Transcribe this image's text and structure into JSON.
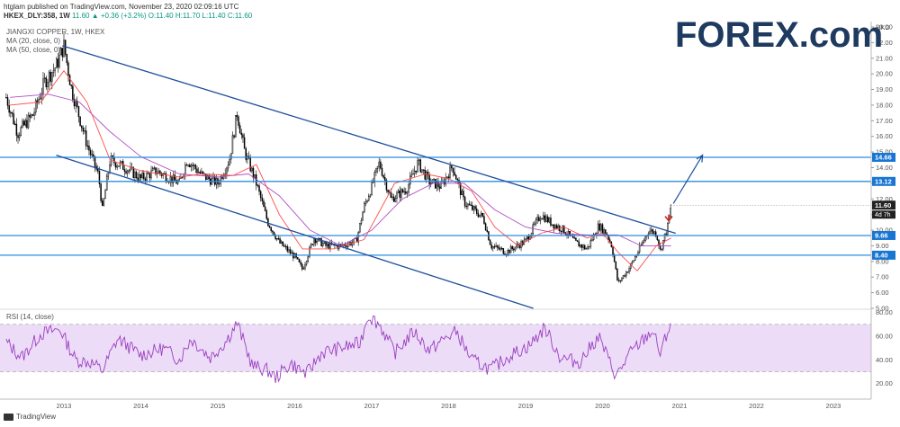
{
  "header": {
    "author": "htglam",
    "published_text": "published on TradingView.com, November 23, 2020 02:09:16 UTC",
    "symbol": "HKEX_DLY:358, 1W",
    "ohlc": "11.60 ▲ +0.36 (+3.2%) O:11.40 H:11.70 L:11.40 C:11.60"
  },
  "legend": {
    "title": "JIANGXI COPPER, 1W, HKEX",
    "ma20": "MA (20, close, 0)",
    "ma50": "MA (50, close, 0)"
  },
  "rsi_legend": "RSI (14, close)",
  "logo": {
    "text": "FOREX.com"
  },
  "currency_label": "HKD",
  "footer": {
    "brand": "TradingView"
  },
  "colors": {
    "candle": "#000000",
    "ma20": "#ff4d4d",
    "ma50": "#b04fc4",
    "trendline": "#1c4f9c",
    "level_line": "#2c8ce0",
    "price_tag": "#1876d2",
    "rsi_line": "#9b3fc0",
    "rsi_band": "#ecdcf7",
    "arrow_marker": "#c62828"
  },
  "chart_data": [
    {
      "type": "candlestick",
      "title": "JIANGXI COPPER, 1W, HKEX",
      "x_ticks": [
        "2013",
        "2014",
        "2015",
        "2016",
        "2017",
        "2018",
        "2019",
        "2020",
        "2021",
        "2022",
        "2023"
      ],
      "y_ticks": [
        5.0,
        6.0,
        7.0,
        8.0,
        9.0,
        10.0,
        11.0,
        12.0,
        13.0,
        14.0,
        15.0,
        16.0,
        17.0,
        18.0,
        19.0,
        20.0,
        21.0,
        22.0,
        23.0
      ],
      "y_tick_labels": [
        "5.00",
        "6.00",
        "7.00",
        "8.00",
        "9.00",
        "10.00",
        "11.00",
        "12.00",
        "13.00",
        "14.00",
        "15.00",
        "16.00",
        "17.00",
        "18.00",
        "19.00",
        "20.00",
        "21.00",
        "22.00",
        "23.00"
      ],
      "ylim": [
        5.0,
        23.0
      ],
      "price_path": [
        [
          2012.25,
          18.5
        ],
        [
          2012.4,
          16.2
        ],
        [
          2012.6,
          17.4
        ],
        [
          2012.75,
          19.5
        ],
        [
          2012.9,
          20.5
        ],
        [
          2013.0,
          21.8
        ],
        [
          2013.1,
          19.0
        ],
        [
          2013.3,
          15.5
        ],
        [
          2013.45,
          13.5
        ],
        [
          2013.5,
          11.3
        ],
        [
          2013.6,
          14.5
        ],
        [
          2013.8,
          14.0
        ],
        [
          2014.0,
          13.3
        ],
        [
          2014.2,
          13.8
        ],
        [
          2014.5,
          13.0
        ],
        [
          2014.6,
          14.5
        ],
        [
          2014.8,
          13.5
        ],
        [
          2015.0,
          13.0
        ],
        [
          2015.15,
          14.5
        ],
        [
          2015.25,
          17.5
        ],
        [
          2015.35,
          15.0
        ],
        [
          2015.5,
          13.0
        ],
        [
          2015.65,
          10.5
        ],
        [
          2015.8,
          9.2
        ],
        [
          2016.0,
          8.3
        ],
        [
          2016.1,
          7.5
        ],
        [
          2016.25,
          9.5
        ],
        [
          2016.4,
          9.0
        ],
        [
          2016.6,
          9.0
        ],
        [
          2016.8,
          9.3
        ],
        [
          2016.9,
          11.5
        ],
        [
          2017.0,
          12.8
        ],
        [
          2017.1,
          14.3
        ],
        [
          2017.25,
          12.0
        ],
        [
          2017.45,
          12.6
        ],
        [
          2017.6,
          14.3
        ],
        [
          2017.75,
          13.1
        ],
        [
          2017.9,
          12.8
        ],
        [
          2018.05,
          14.1
        ],
        [
          2018.2,
          11.8
        ],
        [
          2018.45,
          10.8
        ],
        [
          2018.55,
          9.0
        ],
        [
          2018.75,
          8.6
        ],
        [
          2019.0,
          9.3
        ],
        [
          2019.2,
          11.0
        ],
        [
          2019.35,
          10.4
        ],
        [
          2019.5,
          10.0
        ],
        [
          2019.65,
          9.2
        ],
        [
          2019.8,
          8.8
        ],
        [
          2019.95,
          10.3
        ],
        [
          2020.05,
          9.8
        ],
        [
          2020.12,
          9.0
        ],
        [
          2020.2,
          6.6
        ],
        [
          2020.35,
          7.6
        ],
        [
          2020.5,
          9.0
        ],
        [
          2020.6,
          10.0
        ],
        [
          2020.7,
          9.8
        ],
        [
          2020.75,
          8.7
        ],
        [
          2020.85,
          10.3
        ],
        [
          2020.89,
          11.6
        ]
      ],
      "ma20_path": [
        [
          2012.3,
          18.0
        ],
        [
          2012.7,
          18.2
        ],
        [
          2013.0,
          20.2
        ],
        [
          2013.3,
          18.2
        ],
        [
          2013.6,
          14.5
        ],
        [
          2014.0,
          13.8
        ],
        [
          2014.5,
          13.4
        ],
        [
          2014.8,
          13.6
        ],
        [
          2015.2,
          13.5
        ],
        [
          2015.5,
          14.2
        ],
        [
          2015.8,
          11.0
        ],
        [
          2016.1,
          8.8
        ],
        [
          2016.5,
          8.8
        ],
        [
          2016.9,
          9.4
        ],
        [
          2017.3,
          13.0
        ],
        [
          2017.7,
          13.6
        ],
        [
          2018.0,
          13.3
        ],
        [
          2018.3,
          12.5
        ],
        [
          2018.6,
          10.2
        ],
        [
          2018.9,
          9.0
        ],
        [
          2019.2,
          9.8
        ],
        [
          2019.5,
          10.2
        ],
        [
          2019.8,
          9.5
        ],
        [
          2020.0,
          9.8
        ],
        [
          2020.2,
          8.6
        ],
        [
          2020.45,
          7.4
        ],
        [
          2020.7,
          9.0
        ],
        [
          2020.89,
          9.5
        ]
      ],
      "ma50_path": [
        [
          2012.3,
          18.5
        ],
        [
          2012.8,
          18.7
        ],
        [
          2013.2,
          18.2
        ],
        [
          2013.6,
          16.3
        ],
        [
          2014.0,
          14.7
        ],
        [
          2014.5,
          13.6
        ],
        [
          2015.0,
          13.4
        ],
        [
          2015.4,
          13.6
        ],
        [
          2015.8,
          12.2
        ],
        [
          2016.2,
          10.0
        ],
        [
          2016.6,
          9.0
        ],
        [
          2017.0,
          10.0
        ],
        [
          2017.4,
          12.0
        ],
        [
          2017.8,
          13.0
        ],
        [
          2018.2,
          13.0
        ],
        [
          2018.6,
          11.3
        ],
        [
          2019.0,
          10.2
        ],
        [
          2019.4,
          9.8
        ],
        [
          2019.8,
          9.7
        ],
        [
          2020.2,
          9.7
        ],
        [
          2020.5,
          9.0
        ],
        [
          2020.89,
          9.0
        ]
      ],
      "horizontal_levels": [
        {
          "label": "14.66",
          "value": 14.66
        },
        {
          "label": "13.12",
          "value": 13.12
        },
        {
          "label": "9.66",
          "value": 9.66
        },
        {
          "label": "8.40",
          "value": 8.4
        }
      ],
      "current_price": {
        "label": "11.60",
        "value": 11.6,
        "countdown": "4d 7h"
      },
      "upper_trendline": [
        [
          2012.98,
          21.8
        ],
        [
          2020.95,
          9.8
        ]
      ],
      "lower_trendline": [
        [
          2012.9,
          14.8
        ],
        [
          2019.1,
          5.0
        ]
      ],
      "projection_arrow": [
        [
          2020.92,
          11.7
        ],
        [
          2021.3,
          14.8
        ]
      ]
    },
    {
      "type": "line",
      "title": "RSI (14, close)",
      "y_ticks": [
        20.0,
        40.0,
        60.0,
        80.0
      ],
      "y_tick_labels": [
        "20.00",
        "40.00",
        "60.00",
        "80.00"
      ],
      "ylim": [
        16.0,
        82.0
      ],
      "band": [
        30,
        70
      ],
      "series": [
        {
          "values": [
            [
              2012.25,
              55
            ],
            [
              2012.45,
              42
            ],
            [
              2012.7,
              62
            ],
            [
              2012.95,
              66
            ],
            [
              2013.15,
              40
            ],
            [
              2013.35,
              38
            ],
            [
              2013.5,
              31
            ],
            [
              2013.7,
              58
            ],
            [
              2014.0,
              44
            ],
            [
              2014.3,
              50
            ],
            [
              2014.5,
              40
            ],
            [
              2014.65,
              58
            ],
            [
              2014.9,
              42
            ],
            [
              2015.1,
              55
            ],
            [
              2015.25,
              71
            ],
            [
              2015.45,
              35
            ],
            [
              2015.65,
              31
            ],
            [
              2015.75,
              25
            ],
            [
              2015.95,
              37
            ],
            [
              2016.15,
              28
            ],
            [
              2016.35,
              46
            ],
            [
              2016.6,
              50
            ],
            [
              2016.85,
              54
            ],
            [
              2016.95,
              78
            ],
            [
              2017.1,
              70
            ],
            [
              2017.3,
              46
            ],
            [
              2017.55,
              64
            ],
            [
              2017.75,
              48
            ],
            [
              2017.95,
              58
            ],
            [
              2018.1,
              64
            ],
            [
              2018.3,
              40
            ],
            [
              2018.55,
              32
            ],
            [
              2018.8,
              44
            ],
            [
              2019.05,
              52
            ],
            [
              2019.25,
              67
            ],
            [
              2019.45,
              42
            ],
            [
              2019.7,
              38
            ],
            [
              2019.95,
              60
            ],
            [
              2020.08,
              40
            ],
            [
              2020.18,
              26
            ],
            [
              2020.35,
              45
            ],
            [
              2020.5,
              55
            ],
            [
              2020.65,
              65
            ],
            [
              2020.75,
              45
            ],
            [
              2020.89,
              72
            ]
          ]
        }
      ]
    }
  ]
}
